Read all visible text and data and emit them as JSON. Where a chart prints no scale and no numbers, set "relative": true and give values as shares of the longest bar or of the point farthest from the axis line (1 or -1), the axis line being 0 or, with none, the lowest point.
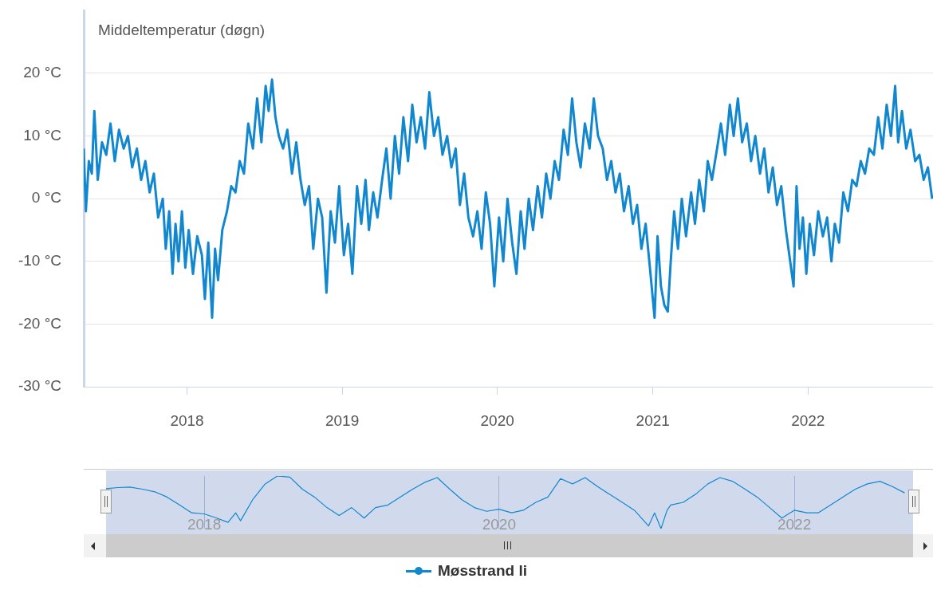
{
  "chart_data": [
    {
      "type": "line",
      "title": "Middeltemperatur (døgn)",
      "xlim": [
        "2017-05-03",
        "2022-10-22"
      ],
      "xticks": [
        "2018",
        "2019",
        "2020",
        "2021",
        "2022"
      ],
      "ylim": [
        -30,
        30
      ],
      "yticks": [
        {
          "value": -30,
          "label": "-30 °C"
        },
        {
          "value": -20,
          "label": "-20 °C"
        },
        {
          "value": -10,
          "label": "-10 °C"
        },
        {
          "value": 0,
          "label": "0 °C"
        },
        {
          "value": 10,
          "label": "10 °C"
        },
        {
          "value": 20,
          "label": "20 °C"
        }
      ],
      "grid": "y",
      "legend": "bottom",
      "series": [
        {
          "name": "Møsstrand li",
          "color": "#1187cf",
          "x": [
            "2017-05-03",
            "2017-05-08",
            "2017-05-15",
            "2017-05-22",
            "2017-05-28",
            "2017-06-05",
            "2017-06-15",
            "2017-06-25",
            "2017-07-05",
            "2017-07-15",
            "2017-07-25",
            "2017-08-05",
            "2017-08-15",
            "2017-08-25",
            "2017-09-05",
            "2017-09-15",
            "2017-09-25",
            "2017-10-05",
            "2017-10-15",
            "2017-10-25",
            "2017-11-05",
            "2017-11-12",
            "2017-11-20",
            "2017-11-28",
            "2017-12-05",
            "2017-12-12",
            "2017-12-20",
            "2017-12-28",
            "2018-01-05",
            "2018-01-15",
            "2018-01-25",
            "2018-02-05",
            "2018-02-12",
            "2018-02-20",
            "2018-03-01",
            "2018-03-08",
            "2018-03-15",
            "2018-03-25",
            "2018-04-05",
            "2018-04-15",
            "2018-04-25",
            "2018-05-05",
            "2018-05-15",
            "2018-05-25",
            "2018-06-05",
            "2018-06-15",
            "2018-06-25",
            "2018-07-05",
            "2018-07-12",
            "2018-07-20",
            "2018-07-28",
            "2018-08-05",
            "2018-08-15",
            "2018-08-25",
            "2018-09-05",
            "2018-09-15",
            "2018-09-25",
            "2018-10-05",
            "2018-10-15",
            "2018-10-25",
            "2018-11-05",
            "2018-11-15",
            "2018-11-25",
            "2018-12-05",
            "2018-12-15",
            "2018-12-25",
            "2019-01-05",
            "2019-01-15",
            "2019-01-25",
            "2019-02-05",
            "2019-02-15",
            "2019-02-25",
            "2019-03-05",
            "2019-03-15",
            "2019-03-25",
            "2019-04-05",
            "2019-04-15",
            "2019-04-25",
            "2019-05-05",
            "2019-05-15",
            "2019-05-25",
            "2019-06-05",
            "2019-06-15",
            "2019-06-25",
            "2019-07-05",
            "2019-07-15",
            "2019-07-25",
            "2019-08-05",
            "2019-08-15",
            "2019-08-25",
            "2019-09-05",
            "2019-09-15",
            "2019-09-25",
            "2019-10-05",
            "2019-10-15",
            "2019-10-25",
            "2019-11-05",
            "2019-11-15",
            "2019-11-25",
            "2019-12-05",
            "2019-12-15",
            "2019-12-25",
            "2020-01-05",
            "2020-01-15",
            "2020-01-25",
            "2020-02-05",
            "2020-02-15",
            "2020-02-25",
            "2020-03-05",
            "2020-03-15",
            "2020-03-25",
            "2020-04-05",
            "2020-04-15",
            "2020-04-25",
            "2020-05-05",
            "2020-05-15",
            "2020-05-25",
            "2020-06-05",
            "2020-06-15",
            "2020-06-25",
            "2020-07-05",
            "2020-07-15",
            "2020-07-25",
            "2020-08-05",
            "2020-08-15",
            "2020-08-25",
            "2020-09-05",
            "2020-09-15",
            "2020-09-25",
            "2020-10-05",
            "2020-10-15",
            "2020-10-25",
            "2020-11-05",
            "2020-11-15",
            "2020-11-25",
            "2020-12-05",
            "2020-12-15",
            "2020-12-25",
            "2021-01-05",
            "2021-01-12",
            "2021-01-20",
            "2021-01-28",
            "2021-02-05",
            "2021-02-12",
            "2021-02-20",
            "2021-03-01",
            "2021-03-10",
            "2021-03-20",
            "2021-04-01",
            "2021-04-10",
            "2021-04-20",
            "2021-05-01",
            "2021-05-10",
            "2021-05-20",
            "2021-06-01",
            "2021-06-10",
            "2021-06-20",
            "2021-07-01",
            "2021-07-10",
            "2021-07-20",
            "2021-07-30",
            "2021-08-10",
            "2021-08-20",
            "2021-08-30",
            "2021-09-10",
            "2021-09-20",
            "2021-09-30",
            "2021-10-10",
            "2021-10-20",
            "2021-10-30",
            "2021-11-10",
            "2021-11-20",
            "2021-11-28",
            "2021-12-05",
            "2021-12-12",
            "2021-12-20",
            "2021-12-28",
            "2022-01-05",
            "2022-01-15",
            "2022-01-25",
            "2022-02-05",
            "2022-02-15",
            "2022-02-25",
            "2022-03-05",
            "2022-03-15",
            "2022-03-25",
            "2022-04-05",
            "2022-04-15",
            "2022-04-25",
            "2022-05-05",
            "2022-05-15",
            "2022-05-25",
            "2022-06-05",
            "2022-06-15",
            "2022-06-25",
            "2022-07-05",
            "2022-07-15",
            "2022-07-25",
            "2022-08-01",
            "2022-08-10",
            "2022-08-20",
            "2022-08-30",
            "2022-09-10",
            "2022-09-20",
            "2022-09-30",
            "2022-10-10",
            "2022-10-20"
          ],
          "values": [
            8,
            -2,
            6,
            4,
            14,
            3,
            9,
            7,
            12,
            6,
            11,
            8,
            10,
            5,
            8,
            3,
            6,
            1,
            4,
            -3,
            0,
            -8,
            -2,
            -12,
            -4,
            -10,
            -2,
            -11,
            -5,
            -12,
            -6,
            -9,
            -16,
            -7,
            -19,
            -8,
            -13,
            -5,
            -2,
            2,
            1,
            6,
            4,
            12,
            8,
            16,
            9,
            18,
            14,
            19,
            13,
            10,
            8,
            11,
            4,
            9,
            3,
            -1,
            2,
            -8,
            0,
            -3,
            -15,
            -2,
            -7,
            2,
            -9,
            -4,
            -12,
            2,
            -4,
            3,
            -5,
            1,
            -3,
            3,
            8,
            0,
            10,
            4,
            13,
            6,
            15,
            9,
            13,
            8,
            17,
            10,
            13,
            7,
            10,
            5,
            8,
            -1,
            4,
            -3,
            -6,
            -2,
            -8,
            1,
            -4,
            -14,
            -3,
            -10,
            0,
            -7,
            -12,
            -2,
            -8,
            0,
            -5,
            2,
            -3,
            4,
            0,
            6,
            3,
            11,
            7,
            16,
            9,
            5,
            12,
            8,
            16,
            10,
            8,
            3,
            6,
            1,
            4,
            -2,
            2,
            -4,
            -1,
            -8,
            -4,
            -11,
            -19,
            -6,
            -14,
            -17,
            -18,
            -10,
            -2,
            -8,
            0,
            -6,
            1,
            -4,
            3,
            -2,
            6,
            3,
            8,
            12,
            7,
            15,
            10,
            16,
            9,
            12,
            6,
            10,
            4,
            8,
            1,
            5,
            -1,
            2,
            -5,
            -10,
            -14,
            2,
            -8,
            -3,
            -12,
            -4,
            -9,
            -2,
            -6,
            -3,
            -10,
            -4,
            -7,
            1,
            -2,
            3,
            2,
            6,
            4,
            8,
            7,
            13,
            8,
            15,
            10,
            18,
            9,
            14,
            8,
            11,
            6,
            7,
            3,
            5,
            0
          ]
        }
      ]
    },
    {
      "type": "line",
      "relative": true,
      "xlim": [
        "2017-05-03",
        "2022-10-22"
      ],
      "xticks": [
        "2018",
        "2020",
        "2022"
      ],
      "grid": "x",
      "series": [
        {
          "color": "#1187cf",
          "x": [
            "2017-05-03",
            "2017-06",
            "2017-07",
            "2017-08",
            "2017-09",
            "2017-10",
            "2017-11",
            "2017-12",
            "2018-01",
            "2018-02",
            "2018-03",
            "2018-03-20",
            "2018-04",
            "2018-05",
            "2018-06",
            "2018-07",
            "2018-08",
            "2018-09",
            "2018-10",
            "2018-11",
            "2018-12",
            "2019-01",
            "2019-02",
            "2019-03",
            "2019-04",
            "2019-05",
            "2019-06",
            "2019-07",
            "2019-08",
            "2019-09",
            "2019-10",
            "2019-11",
            "2019-12",
            "2020-01",
            "2020-02",
            "2020-03",
            "2020-04",
            "2020-05",
            "2020-06",
            "2020-07",
            "2020-08",
            "2020-09",
            "2020-10",
            "2020-11",
            "2020-12",
            "2021-01-05",
            "2021-01-20",
            "2021-02-05",
            "2021-02-20",
            "2021-03",
            "2021-04",
            "2021-05",
            "2021-06",
            "2021-07",
            "2021-08",
            "2021-09",
            "2021-10",
            "2021-11",
            "2021-12",
            "2022-01",
            "2022-02",
            "2022-03",
            "2022-04",
            "2022-05",
            "2022-06",
            "2022-07",
            "2022-08",
            "2022-09",
            "2022-10"
          ],
          "values": [
            0.76,
            0.78,
            0.79,
            0.75,
            0.7,
            0.6,
            0.45,
            0.3,
            0.28,
            0.2,
            0.12,
            0.3,
            0.15,
            0.55,
            0.85,
            1,
            0.98,
            0.75,
            0.6,
            0.4,
            0.25,
            0.4,
            0.2,
            0.4,
            0.45,
            0.6,
            0.75,
            0.88,
            0.97,
            0.75,
            0.55,
            0.4,
            0.33,
            0.37,
            0.3,
            0.35,
            0.5,
            0.6,
            0.95,
            0.85,
            0.97,
            0.8,
            0.65,
            0.5,
            0.35,
            0.05,
            0.3,
            0,
            0.35,
            0.45,
            0.5,
            0.65,
            0.85,
            0.97,
            0.9,
            0.75,
            0.6,
            0.4,
            0.2,
            0.35,
            0.3,
            0.3,
            0.45,
            0.6,
            0.75,
            0.85,
            0.9,
            0.8,
            0.68
          ]
        }
      ]
    }
  ]
}
